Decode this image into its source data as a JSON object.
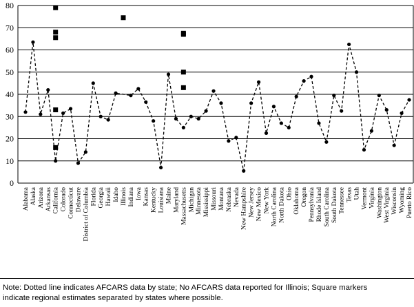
{
  "chart_data": {
    "type": "line",
    "ylim": [
      0,
      80
    ],
    "yticks": [
      "0",
      "10",
      "20",
      "30",
      "40",
      "50",
      "60",
      "70",
      "80"
    ],
    "grid": true,
    "categories": [
      "Alabama",
      "Alaska",
      "Arizona",
      "Arkansas",
      "California",
      "Colorado",
      "Connecticut",
      "Delaware",
      "District of Columbia",
      "Florida",
      "Georgia",
      "Hawaii",
      "Idaho",
      "Illinois",
      "Indiana",
      "Iowa",
      "Kansas",
      "Kentucky",
      "Louisiana",
      "Maine",
      "Maryland",
      "Massachusetts",
      "Michigan",
      "Minnesota",
      "Mississippi",
      "Missouri",
      "Montana",
      "Nebraska",
      "Nevada",
      "New Hampshire",
      "New Jersey",
      "New Mexico",
      "New York",
      "North Carolina",
      "North Dakota",
      "Ohio",
      "Oklahoma",
      "Oregon",
      "Pennsylvania",
      "Rhode Island",
      "South Carolina",
      "South Dakota",
      "Tennessee",
      "Texas",
      "Utah",
      "Vermont",
      "Virginia",
      "Washington",
      "West Virginia",
      "Wisconsin",
      "Wyoming",
      "Puerto Rico"
    ],
    "series": [
      {
        "style": "dotted-line",
        "values": [
          32,
          63.5,
          31,
          42,
          10,
          31.5,
          33.5,
          9,
          14,
          45,
          30,
          28.5,
          40.5,
          null,
          39.5,
          42.5,
          36.5,
          28,
          7,
          49,
          29,
          25,
          30,
          29,
          32.5,
          41.5,
          36,
          19,
          20.5,
          5.5,
          36,
          45.5,
          22.5,
          34.5,
          27,
          25,
          39,
          46,
          48,
          27,
          18.5,
          39.5,
          32.5,
          62.5,
          50,
          15,
          23.5,
          39.5,
          33,
          17,
          31.5,
          37.5
        ]
      },
      {
        "style": "square-markers",
        "points": [
          {
            "category": "California",
            "y": 79
          },
          {
            "category": "California",
            "y": 68
          },
          {
            "category": "California",
            "y": 65.5
          },
          {
            "category": "California",
            "y": 33
          },
          {
            "category": "California",
            "y": 16
          },
          {
            "category": "Illinois",
            "y": 74.5
          },
          {
            "category": "Massachusetts",
            "y": 67.5
          },
          {
            "category": "Massachusetts",
            "y": 67
          },
          {
            "category": "Massachusetts",
            "y": 50
          },
          {
            "category": "Massachusetts",
            "y": 43
          }
        ]
      }
    ]
  },
  "note": {
    "line1": "Note: Dotted line indicates AFCARS data by state; No AFCARS data reported for Illinois; Square markers",
    "line2": "indicate regional estimates separated by states where possible."
  }
}
